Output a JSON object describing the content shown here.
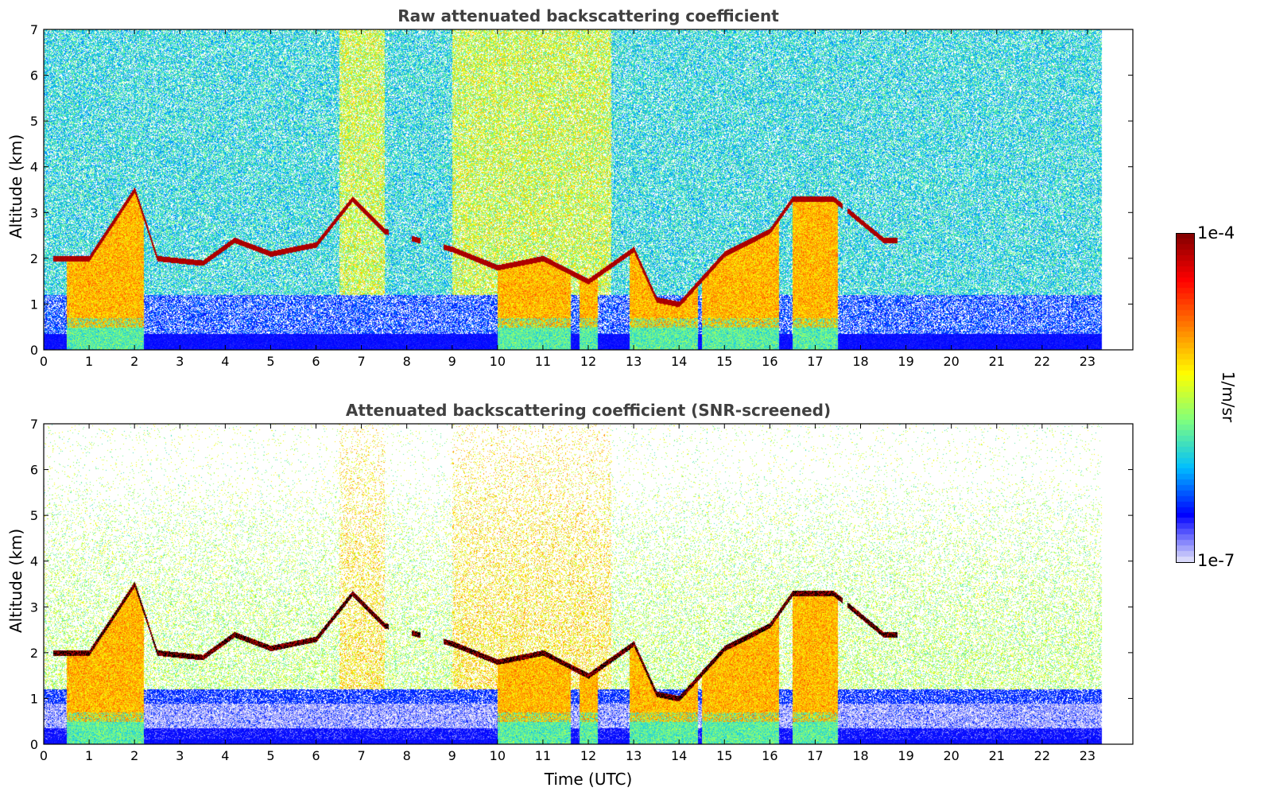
{
  "chart_data": [
    {
      "type": "heatmap",
      "title": "Raw attenuated backscattering coefficient",
      "ylabel": "Altitude (km)",
      "xlabel": "",
      "xlim": [
        0,
        24
      ],
      "ylim": [
        0,
        7
      ],
      "x_ticks": [
        "0",
        "1",
        "2",
        "3",
        "4",
        "5",
        "6",
        "7",
        "8",
        "9",
        "10",
        "11",
        "12",
        "13",
        "14",
        "15",
        "16",
        "17",
        "18",
        "19",
        "20",
        "21",
        "22",
        "23"
      ],
      "y_ticks": [
        "0",
        "1",
        "2",
        "3",
        "4",
        "5",
        "6",
        "7"
      ],
      "data_time_range": [
        0,
        23.3
      ],
      "cloud_layer_altitude_km": [
        [
          0.3,
          2.0
        ],
        [
          1.0,
          2.0
        ],
        [
          2.0,
          3.5
        ],
        [
          2.5,
          2.0
        ],
        [
          3.5,
          1.9
        ],
        [
          4.2,
          2.4
        ],
        [
          5.0,
          2.1
        ],
        [
          6.0,
          2.3
        ],
        [
          6.8,
          3.3
        ],
        [
          7.5,
          2.6
        ],
        [
          9.0,
          2.2
        ],
        [
          10.0,
          1.8
        ],
        [
          11.0,
          2.0
        ],
        [
          12.0,
          1.5
        ],
        [
          13.0,
          2.2
        ],
        [
          13.5,
          1.1
        ],
        [
          14.0,
          1.0
        ],
        [
          15.0,
          2.1
        ],
        [
          16.0,
          2.6
        ],
        [
          16.5,
          3.3
        ],
        [
          17.4,
          3.3
        ],
        [
          18.5,
          2.4
        ]
      ],
      "screened": false
    },
    {
      "type": "heatmap",
      "title": "Attenuated backscattering coefficient (SNR-screened)",
      "ylabel": "Altitude (km)",
      "xlabel": "Time (UTC)",
      "xlim": [
        0,
        24
      ],
      "ylim": [
        0,
        7
      ],
      "x_ticks": [
        "0",
        "1",
        "2",
        "3",
        "4",
        "5",
        "6",
        "7",
        "8",
        "9",
        "10",
        "11",
        "12",
        "13",
        "14",
        "15",
        "16",
        "17",
        "18",
        "19",
        "20",
        "21",
        "22",
        "23"
      ],
      "y_ticks": [
        "0",
        "1",
        "2",
        "3",
        "4",
        "5",
        "6",
        "7"
      ],
      "data_time_range": [
        0,
        23.3
      ],
      "screened": true
    }
  ],
  "colorbar": {
    "max_label": "1e-4",
    "min_label": "1e-7",
    "label": "1/m/sr",
    "colormap": [
      "#e6e6fa",
      "#0000ff",
      "#00bfff",
      "#7fff7f",
      "#ffff00",
      "#ff7f00",
      "#ff0000",
      "#7f0000"
    ]
  }
}
